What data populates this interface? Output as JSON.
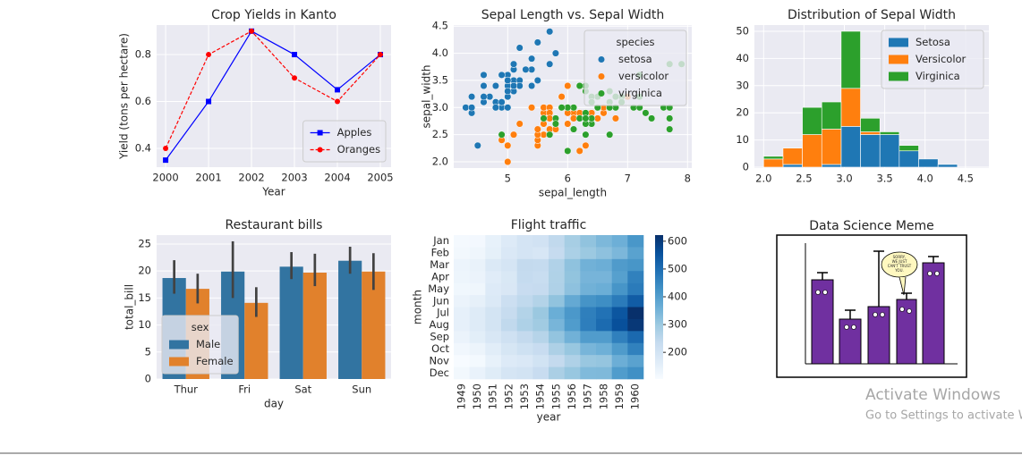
{
  "chart_data": [
    {
      "type": "line",
      "title": "Crop Yields in Kanto",
      "xlabel": "Year",
      "ylabel": "Yield (tons per hectare)",
      "x": [
        2000,
        2001,
        2002,
        2003,
        2004,
        2005
      ],
      "series": [
        {
          "name": "Apples",
          "color": "#0000ff",
          "marker": "square",
          "linestyle": "solid",
          "values": [
            0.35,
            0.6,
            0.9,
            0.8,
            0.65,
            0.8
          ]
        },
        {
          "name": "Oranges",
          "color": "#ff0000",
          "marker": "circle",
          "linestyle": "dashed",
          "values": [
            0.4,
            0.8,
            0.9,
            0.7,
            0.6,
            0.8
          ]
        }
      ],
      "xlim": [
        1999.79,
        2005.25
      ],
      "xticks": [
        2000,
        2001,
        2002,
        2003,
        2004,
        2005
      ],
      "ylim": [
        0.32,
        0.926
      ],
      "yticks": [
        0.4,
        0.6,
        0.8
      ],
      "grid": true,
      "legend": "lower right"
    },
    {
      "type": "scatter",
      "title": "Sepal Length vs. Sepal Width",
      "xlabel": "sepal_length",
      "ylabel": "sepal_width",
      "legend_title": "species",
      "legend": "upper right",
      "grid": true,
      "xlim": [
        4.1,
        8.07
      ],
      "xticks": [
        5,
        6,
        7,
        8
      ],
      "ylim": [
        1.885,
        4.52
      ],
      "yticks": [
        {
          "value": 2,
          "label": "2.0"
        },
        2.5,
        {
          "value": 3,
          "label": "3.0"
        },
        3.5,
        {
          "value": 4,
          "label": "4.0"
        },
        4.5
      ],
      "series": [
        {
          "name": "setosa",
          "color": "#1f77b4",
          "x": [
            5.1,
            4.9,
            4.7,
            4.6,
            5.0,
            5.4,
            4.6,
            5.0,
            4.4,
            4.9,
            5.4,
            4.8,
            4.8,
            4.3,
            5.8,
            5.7,
            5.4,
            5.1,
            5.7,
            5.1,
            5.4,
            5.1,
            4.6,
            5.1,
            4.8,
            5.0,
            5.0,
            5.2,
            5.2,
            4.7,
            4.8,
            5.4,
            5.2,
            5.5,
            4.9,
            5.0,
            5.5,
            4.9,
            4.4,
            5.1,
            5.0,
            4.5,
            4.4,
            5.0,
            5.1,
            4.8,
            5.1,
            4.6,
            5.3,
            5.0
          ],
          "values": [
            3.5,
            3.0,
            3.2,
            3.1,
            3.6,
            3.9,
            3.4,
            3.4,
            2.9,
            3.1,
            3.7,
            3.4,
            3.0,
            3.0,
            4.0,
            4.4,
            3.9,
            3.5,
            3.8,
            3.8,
            3.4,
            3.7,
            3.6,
            3.3,
            3.4,
            3.0,
            3.4,
            3.5,
            3.4,
            3.2,
            3.1,
            3.4,
            4.1,
            4.2,
            3.1,
            3.2,
            3.5,
            3.6,
            3.0,
            3.4,
            3.5,
            2.3,
            3.2,
            3.5,
            3.8,
            3.0,
            3.8,
            3.2,
            3.7,
            3.3
          ]
        },
        {
          "name": "versicolor",
          "color": "#ff7f0e",
          "x": [
            7.0,
            6.4,
            6.9,
            5.5,
            6.5,
            5.7,
            6.3,
            4.9,
            6.6,
            5.2,
            5.0,
            5.9,
            6.0,
            6.1,
            5.6,
            6.7,
            5.6,
            5.8,
            6.2,
            5.6,
            5.9,
            6.1,
            6.3,
            6.1,
            6.4,
            6.6,
            6.8,
            6.7,
            6.0,
            5.7,
            5.5,
            5.5,
            5.8,
            6.0,
            5.4,
            6.0,
            6.7,
            6.3,
            5.6,
            5.5,
            5.5,
            6.1,
            5.8,
            5.0,
            5.6,
            5.7,
            5.7,
            6.2,
            5.1,
            5.7
          ],
          "values": [
            3.2,
            3.2,
            3.1,
            2.3,
            2.8,
            2.8,
            3.3,
            2.4,
            2.9,
            2.7,
            2.0,
            3.0,
            2.2,
            2.9,
            2.9,
            3.1,
            3.0,
            2.7,
            2.2,
            2.5,
            3.2,
            2.8,
            2.5,
            2.8,
            2.9,
            3.0,
            2.8,
            3.0,
            2.9,
            2.6,
            2.4,
            2.4,
            2.7,
            2.7,
            3.0,
            3.4,
            3.1,
            2.3,
            3.0,
            2.5,
            2.6,
            3.0,
            2.6,
            2.3,
            2.7,
            3.0,
            2.9,
            2.9,
            2.5,
            2.8
          ]
        },
        {
          "name": "virginica",
          "color": "#2ca02c",
          "x": [
            6.3,
            5.8,
            7.1,
            6.3,
            6.5,
            7.6,
            4.9,
            7.3,
            6.7,
            7.2,
            6.5,
            6.4,
            6.8,
            5.7,
            5.8,
            6.4,
            6.5,
            7.7,
            7.7,
            6.0,
            6.9,
            5.6,
            7.7,
            6.3,
            6.7,
            7.2,
            6.2,
            6.1,
            6.4,
            7.2,
            7.4,
            7.9,
            6.4,
            6.3,
            6.1,
            7.7,
            6.3,
            6.4,
            6.0,
            6.9,
            6.7,
            6.9,
            5.8,
            6.8,
            6.7,
            6.7,
            6.3,
            6.5,
            6.2,
            5.9
          ],
          "values": [
            3.3,
            2.7,
            3.0,
            2.9,
            3.0,
            3.0,
            2.5,
            2.9,
            2.5,
            3.6,
            3.2,
            2.7,
            3.0,
            2.5,
            2.8,
            3.2,
            3.0,
            3.8,
            2.6,
            2.2,
            3.2,
            2.8,
            2.8,
            2.7,
            3.3,
            3.2,
            2.8,
            3.0,
            2.8,
            3.0,
            2.8,
            3.8,
            2.8,
            2.8,
            2.6,
            3.0,
            3.4,
            3.1,
            3.0,
            3.1,
            3.1,
            3.1,
            2.7,
            3.2,
            3.3,
            3.0,
            2.5,
            3.0,
            3.4,
            3.0
          ]
        }
      ]
    },
    {
      "type": "histogram",
      "title": "Distribution of Sepal Width",
      "stacked": true,
      "grid": true,
      "legend": "upper right",
      "bins": [
        2.0,
        2.24,
        2.48,
        2.72,
        2.96,
        3.2,
        3.44,
        3.68,
        3.92,
        4.16,
        4.4
      ],
      "xlim": [
        1.886,
        4.79
      ],
      "xticks": [
        {
          "value": 2,
          "label": "2.0"
        },
        2.5,
        {
          "value": 3,
          "label": "3.0"
        },
        3.5,
        {
          "value": 4,
          "label": "4.0"
        },
        4.5
      ],
      "ylim": [
        -0.33,
        52.3
      ],
      "yticks": [
        0,
        10,
        20,
        30,
        40,
        50
      ],
      "series": [
        {
          "name": "Setosa",
          "color": "#1f77b4",
          "values": [
            0,
            1,
            0,
            1,
            15,
            12,
            12,
            6,
            3,
            1
          ]
        },
        {
          "name": "Versicolor",
          "color": "#ff7f0e",
          "values": [
            3,
            6,
            12,
            13,
            14,
            1,
            0,
            0,
            0,
            0
          ]
        },
        {
          "name": "Virginica",
          "color": "#2ca02c",
          "values": [
            1,
            0,
            10,
            10,
            21,
            5,
            1,
            2,
            0,
            0
          ]
        }
      ]
    },
    {
      "type": "bar",
      "title": "Restaurant bills",
      "xlabel": "day",
      "ylabel": "total_bill",
      "legend_title": "sex",
      "legend": "lower left",
      "grid": true,
      "categories": [
        "Thur",
        "Fri",
        "Sat",
        "Sun"
      ],
      "ylim": [
        0,
        26.65
      ],
      "yticks": [
        0,
        5,
        10,
        15,
        20,
        25
      ],
      "errorcolor": "#424242",
      "series": [
        {
          "name": "Male",
          "color": "#3274a1",
          "values": [
            18.7,
            19.9,
            20.8,
            21.9
          ],
          "ci_low": [
            15.8,
            15.0,
            18.5,
            19.5
          ],
          "ci_high": [
            22.0,
            25.5,
            23.5,
            24.5
          ]
        },
        {
          "name": "Female",
          "color": "#e1812c",
          "values": [
            16.7,
            14.1,
            19.7,
            19.9
          ],
          "ci_low": [
            14.0,
            11.5,
            17.2,
            16.5
          ],
          "ci_high": [
            19.5,
            17.0,
            23.2,
            23.3
          ]
        }
      ]
    },
    {
      "type": "heatmap",
      "title": "Flight traffic",
      "xlabel": "year",
      "ylabel": "month",
      "x": [
        1949,
        1950,
        1951,
        1952,
        1953,
        1954,
        1955,
        1956,
        1957,
        1958,
        1959,
        1960
      ],
      "categories": [
        "Jan",
        "Feb",
        "Mar",
        "Apr",
        "May",
        "Jun",
        "Jul",
        "Aug",
        "Sep",
        "Oct",
        "Nov",
        "Dec"
      ],
      "values": [
        [
          112,
          115,
          145,
          171,
          196,
          204,
          242,
          284,
          315,
          340,
          360,
          417
        ],
        [
          118,
          126,
          150,
          180,
          196,
          188,
          233,
          277,
          301,
          318,
          342,
          391
        ],
        [
          132,
          141,
          178,
          193,
          236,
          235,
          267,
          317,
          356,
          362,
          406,
          419
        ],
        [
          129,
          135,
          163,
          181,
          235,
          227,
          269,
          313,
          348,
          348,
          396,
          461
        ],
        [
          121,
          125,
          172,
          183,
          229,
          234,
          270,
          318,
          355,
          363,
          420,
          472
        ],
        [
          135,
          149,
          178,
          218,
          243,
          264,
          315,
          374,
          422,
          435,
          472,
          535
        ],
        [
          148,
          170,
          199,
          230,
          264,
          302,
          364,
          413,
          465,
          491,
          548,
          622
        ],
        [
          148,
          170,
          199,
          242,
          272,
          293,
          347,
          405,
          467,
          505,
          559,
          606
        ],
        [
          136,
          158,
          184,
          209,
          237,
          259,
          312,
          355,
          404,
          404,
          463,
          508
        ],
        [
          119,
          133,
          162,
          191,
          211,
          229,
          274,
          306,
          347,
          359,
          407,
          461
        ],
        [
          104,
          114,
          146,
          172,
          180,
          203,
          237,
          271,
          305,
          310,
          362,
          390
        ],
        [
          118,
          140,
          166,
          194,
          201,
          229,
          278,
          306,
          336,
          337,
          405,
          432
        ]
      ],
      "clim": [
        104,
        622
      ],
      "cticks": [
        200,
        300,
        400,
        500,
        600
      ],
      "colormap": [
        "#f7fbff",
        "#deebf7",
        "#c6dbef",
        "#9ecae1",
        "#6baed6",
        "#4292c6",
        "#2171b5",
        "#08519c",
        "#08306b"
      ]
    },
    {
      "type": "image",
      "title": "Data Science Meme",
      "speech": [
        "SORRY,",
        "WE JUST",
        "CAN'T TRUST",
        "YOU."
      ]
    }
  ],
  "watermark": {
    "title": "Activate Windows",
    "subtitle": "Go to Settings to activate Windows."
  }
}
